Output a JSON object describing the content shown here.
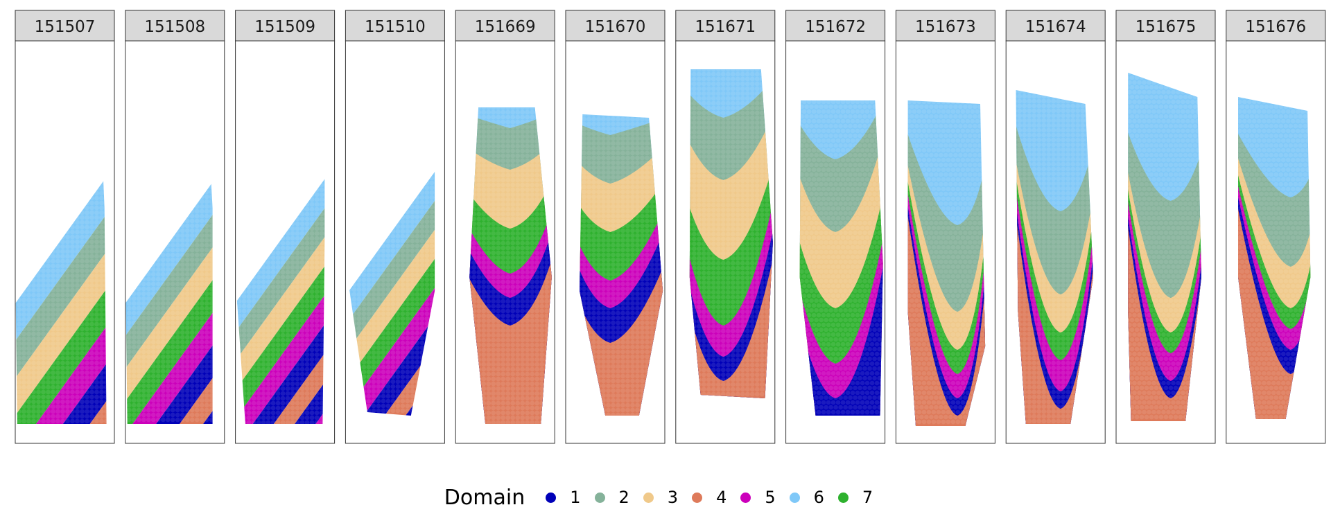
{
  "chart_data": {
    "type": "scatter",
    "facet_labels": [
      "151507",
      "151508",
      "151509",
      "151510",
      "151669",
      "151670",
      "151671",
      "151672",
      "151673",
      "151674",
      "151675",
      "151676"
    ],
    "legend": {
      "title": "Domain",
      "entries": [
        {
          "label": "1",
          "color": "#0000b8"
        },
        {
          "label": "2",
          "color": "#85b29a"
        },
        {
          "label": "3",
          "color": "#f0c98a"
        },
        {
          "label": "4",
          "color": "#de7a5a"
        },
        {
          "label": "5",
          "color": "#cc00bb"
        },
        {
          "label": "6",
          "color": "#7fc8f8"
        },
        {
          "label": "7",
          "color": "#2eb12e"
        }
      ],
      "placement": "bottom"
    },
    "panels": [
      {
        "label": "151507",
        "start": 0.58,
        "slope": 0.55,
        "order": [
          6,
          2,
          3,
          7,
          5,
          1,
          4
        ]
      },
      {
        "label": "151508",
        "start": 0.6,
        "slope": 0.55,
        "order": [
          6,
          2,
          3,
          7,
          5,
          1,
          4,
          1
        ]
      },
      {
        "label": "151509",
        "start": 0.42,
        "slope": 0.55,
        "order": [
          6,
          2,
          3,
          7,
          5,
          1,
          4,
          1,
          5
        ]
      },
      {
        "label": "151510",
        "start": 0.4,
        "slope": 0.55,
        "order": [
          6,
          2,
          3,
          7,
          5,
          1,
          4,
          1,
          5
        ]
      },
      {
        "label": "151669",
        "order": [
          6,
          2,
          3,
          7,
          5,
          1,
          4
        ]
      },
      {
        "label": "151670",
        "order": [
          6,
          2,
          3,
          7,
          5,
          1,
          4
        ]
      },
      {
        "label": "151671",
        "order": [
          6,
          2,
          3,
          7,
          5,
          1,
          4
        ]
      },
      {
        "label": "151672",
        "order": [
          6,
          2,
          3,
          7,
          5,
          1
        ]
      },
      {
        "label": "151673",
        "order": [
          6,
          2,
          3,
          7,
          5,
          1,
          4
        ]
      },
      {
        "label": "151674",
        "order": [
          6,
          2,
          3,
          7,
          5,
          1,
          4
        ]
      },
      {
        "label": "151675",
        "order": [
          6,
          2,
          3,
          7,
          5,
          1,
          4
        ]
      },
      {
        "label": "151676",
        "order": [
          6,
          2,
          3,
          7,
          5,
          1,
          4
        ]
      }
    ]
  }
}
